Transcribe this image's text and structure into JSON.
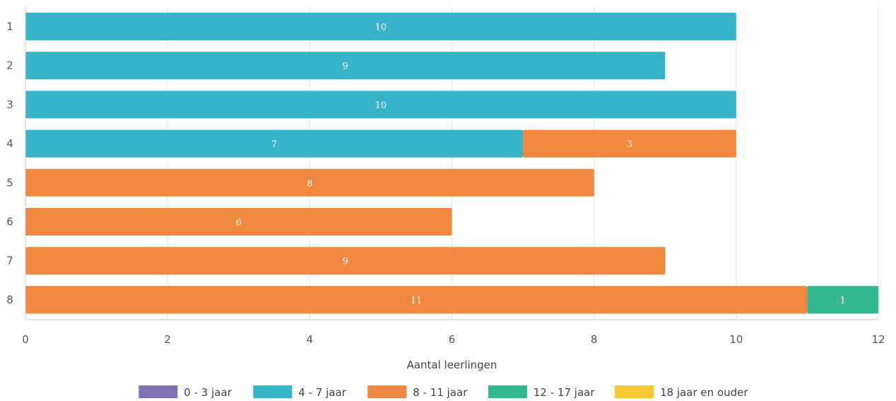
{
  "chart_data": {
    "type": "bar",
    "orientation": "horizontal",
    "stacked": true,
    "title": "",
    "xlabel": "Aantal leerlingen",
    "ylabel": "",
    "xlim": [
      0,
      12
    ],
    "x_ticks": [
      "0",
      "2",
      "4",
      "6",
      "8",
      "10",
      "12"
    ],
    "categories": [
      "1",
      "2",
      "3",
      "4",
      "5",
      "6",
      "7",
      "8"
    ],
    "grid": true,
    "legend_position": "bottom",
    "series": [
      {
        "name": "0 - 3 jaar",
        "color": "#7f6fb3",
        "values": [
          0,
          0,
          0,
          0,
          0,
          0,
          0,
          0
        ]
      },
      {
        "name": "4 - 7 jaar",
        "color": "#36b5c9",
        "values": [
          10,
          9,
          10,
          7,
          0,
          0,
          0,
          0
        ]
      },
      {
        "name": "8 - 11 jaar",
        "color": "#f0893f",
        "values": [
          0,
          0,
          0,
          3,
          8,
          6,
          9,
          11
        ]
      },
      {
        "name": "12 - 17 jaar",
        "color": "#33b88f",
        "values": [
          0,
          0,
          0,
          0,
          0,
          0,
          0,
          1
        ]
      },
      {
        "name": "18 jaar en ouder",
        "color": "#f9c83a",
        "values": [
          0,
          0,
          0,
          0,
          0,
          0,
          0,
          0
        ]
      }
    ]
  }
}
